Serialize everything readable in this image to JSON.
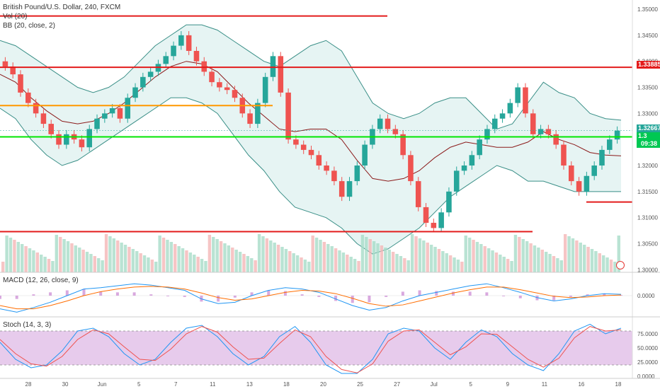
{
  "header": {
    "title": "British Pound/U.S. Dollar, 240, FXCM",
    "indicator_vol": "Vol (20)",
    "indicator_bb": "BB (20, close, 2)",
    "indicator_macd": "MACD (12, 26, close, 9)",
    "indicator_stoch": "Stoch (14, 3, 3)"
  },
  "price_tags": {
    "red_level": "1.33885",
    "last_price": "1.32667",
    "green_level": "1.3",
    "countdown": "09:38"
  },
  "colors": {
    "up": "#26a69a",
    "down": "#ef5350",
    "bb_fill": "#e6f4f3",
    "bb_line": "#3a8f87",
    "bb_mid": "#8b1a1a",
    "red_line": "#e31b1b",
    "orange_line": "#ff9800",
    "green_line": "#00e600",
    "stoch_band": "#e1bee7",
    "macd": "#2196f3",
    "signal": "#ff6d00",
    "stoch_k": "#2196f3",
    "stoch_d": "#ef5350"
  },
  "chart_data": [
    {
      "type": "candlestick",
      "title": "British Pound/U.S. Dollar, 240, FXCM",
      "ylim": [
        1.2995,
        1.3515
      ],
      "y_ticks": [
        "1.30000",
        "1.30500",
        "1.31000",
        "1.31500",
        "1.32000",
        "1.32500",
        "1.33000",
        "1.33500",
        "1.34000",
        "1.34500",
        "1.35000"
      ],
      "x_tick_labels": [
        "28",
        "30",
        "Jun",
        "5",
        "7",
        "11",
        "13",
        "18",
        "20",
        "25",
        "27",
        "Jul",
        "5",
        "9",
        "11",
        "16",
        "18"
      ],
      "close": [
        1.339,
        1.3375,
        1.334,
        1.332,
        1.33,
        1.328,
        1.326,
        1.324,
        1.326,
        1.325,
        1.3235,
        1.327,
        1.329,
        1.33,
        1.331,
        1.329,
        1.333,
        1.335,
        1.337,
        1.338,
        1.3395,
        1.341,
        1.343,
        1.345,
        1.342,
        1.34,
        1.338,
        1.336,
        1.335,
        1.3345,
        1.333,
        1.33,
        1.328,
        1.332,
        1.337,
        1.341,
        1.334,
        1.325,
        1.324,
        1.323,
        1.322,
        1.32,
        1.319,
        1.317,
        1.314,
        1.317,
        1.32,
        1.324,
        1.327,
        1.329,
        1.327,
        1.326,
        1.322,
        1.317,
        1.312,
        1.309,
        1.308,
        1.311,
        1.315,
        1.319,
        1.32,
        1.322,
        1.325,
        1.327,
        1.329,
        1.33,
        1.332,
        1.335,
        1.33,
        1.326,
        1.327,
        1.326,
        1.324,
        1.32,
        1.317,
        1.315,
        1.318,
        1.32,
        1.323,
        1.325,
        1.3267
      ],
      "bb_upper": [
        1.344,
        1.343,
        1.341,
        1.339,
        1.337,
        1.335,
        1.334,
        1.335,
        1.337,
        1.34,
        1.343,
        1.345,
        1.347,
        1.347,
        1.346,
        1.344,
        1.342,
        1.34,
        1.339,
        1.341,
        1.343,
        1.344,
        1.342,
        1.337,
        1.332,
        1.33,
        1.329,
        1.33,
        1.332,
        1.333,
        1.333,
        1.33,
        1.327,
        1.328,
        1.332,
        1.336,
        1.334,
        1.333,
        1.33,
        1.329,
        1.3287
      ],
      "bb_lower": [
        1.331,
        1.329,
        1.325,
        1.322,
        1.32,
        1.321,
        1.323,
        1.325,
        1.327,
        1.329,
        1.331,
        1.333,
        1.333,
        1.332,
        1.33,
        1.326,
        1.322,
        1.319,
        1.315,
        1.312,
        1.311,
        1.31,
        1.308,
        1.305,
        1.303,
        1.304,
        1.306,
        1.308,
        1.311,
        1.314,
        1.316,
        1.318,
        1.32,
        1.319,
        1.317,
        1.317,
        1.316,
        1.315,
        1.315,
        1.315,
        1.315
      ],
      "levels": [
        {
          "name": "red_top",
          "value": 1.3487,
          "color": "red"
        },
        {
          "name": "red_mid",
          "value": 1.33885,
          "color": "red"
        },
        {
          "name": "orange",
          "value": 1.3315,
          "color": "orange"
        },
        {
          "name": "green",
          "value": 1.3255,
          "color": "green"
        },
        {
          "name": "red_right",
          "value": 1.313,
          "color": "red"
        },
        {
          "name": "red_bottom",
          "value": 1.3073,
          "color": "red"
        }
      ]
    },
    {
      "type": "line",
      "title": "MACD (12, 26, close, 9)",
      "y_ticks": [
        "0.0000"
      ],
      "series": [
        {
          "name": "MACD",
          "values": [
            -0.002,
            -0.0025,
            -0.0018,
            -0.001,
            0.0,
            0.001,
            0.0012,
            0.0015,
            0.0018,
            0.0016,
            0.0012,
            0.0008,
            -0.0005,
            -0.0012,
            -0.001,
            0.0,
            0.0008,
            0.0012,
            0.001,
            0.0005,
            -0.0005,
            -0.0015,
            -0.0022,
            -0.0018,
            -0.0008,
            0.0,
            0.0005,
            0.001,
            0.0015,
            0.0018,
            0.0012,
            0.0005,
            -0.0003,
            -0.0008,
            -0.0005,
            0.0,
            0.0003,
            0.0002
          ]
        },
        {
          "name": "Signal",
          "values": [
            -0.0015,
            -0.002,
            -0.002,
            -0.0015,
            -0.0008,
            0.0,
            0.0006,
            0.001,
            0.0013,
            0.0014,
            0.0013,
            0.001,
            0.0004,
            -0.0003,
            -0.0007,
            -0.0005,
            0.0,
            0.0005,
            0.0008,
            0.0007,
            0.0003,
            -0.0004,
            -0.0012,
            -0.0016,
            -0.0014,
            -0.0008,
            -0.0002,
            0.0004,
            0.0009,
            0.0013,
            0.0013,
            0.0009,
            0.0004,
            -0.0001,
            -0.0003,
            -0.0002,
            0.0,
            0.0001
          ]
        }
      ]
    },
    {
      "type": "line",
      "title": "Stoch (14, 3, 3)",
      "ylim": [
        0,
        100
      ],
      "y_ticks": [
        "75.0000",
        "50.0000",
        "25.0000",
        "0.0000"
      ],
      "series": [
        {
          "name": "%K",
          "values": [
            60,
            30,
            15,
            20,
            45,
            80,
            85,
            70,
            40,
            20,
            30,
            60,
            85,
            90,
            70,
            40,
            20,
            35,
            70,
            88,
            60,
            20,
            5,
            5,
            30,
            75,
            85,
            80,
            50,
            30,
            60,
            82,
            70,
            40,
            20,
            10,
            40,
            80,
            92,
            75,
            85
          ]
        },
        {
          "name": "%D",
          "values": [
            65,
            40,
            22,
            18,
            35,
            65,
            82,
            75,
            52,
            30,
            28,
            48,
            75,
            88,
            78,
            52,
            30,
            32,
            58,
            82,
            70,
            35,
            12,
            6,
            22,
            62,
            80,
            82,
            60,
            38,
            52,
            75,
            74,
            52,
            30,
            16,
            32,
            68,
            88,
            80,
            82
          ]
        }
      ]
    }
  ]
}
